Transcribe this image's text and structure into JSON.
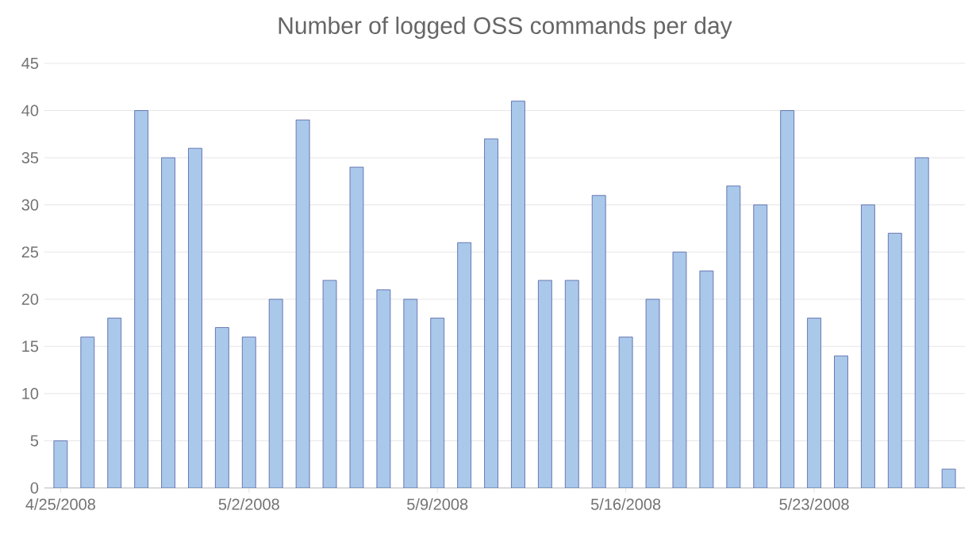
{
  "chart_data": {
    "type": "bar",
    "title": "Number of logged OSS commands per day",
    "categories": [
      "4/25/2008",
      null,
      null,
      null,
      null,
      null,
      null,
      "5/2/2008",
      null,
      null,
      null,
      null,
      null,
      null,
      "5/9/2008",
      null,
      null,
      null,
      null,
      null,
      null,
      "5/16/2008",
      null,
      null,
      null,
      null,
      null,
      null,
      "5/23/2008",
      null,
      null,
      null,
      null,
      null
    ],
    "values": [
      5,
      16,
      18,
      40,
      35,
      36,
      17,
      16,
      20,
      39,
      22,
      34,
      21,
      20,
      18,
      26,
      37,
      41,
      22,
      22,
      31,
      16,
      20,
      25,
      23,
      32,
      30,
      40,
      18,
      14,
      30,
      27,
      35,
      2
    ],
    "color": "#a9c8ea",
    "ylim": [
      0,
      45
    ],
    "yticks": [
      0,
      5,
      10,
      15,
      20,
      25,
      30,
      35,
      40,
      45
    ],
    "grid": "y"
  }
}
